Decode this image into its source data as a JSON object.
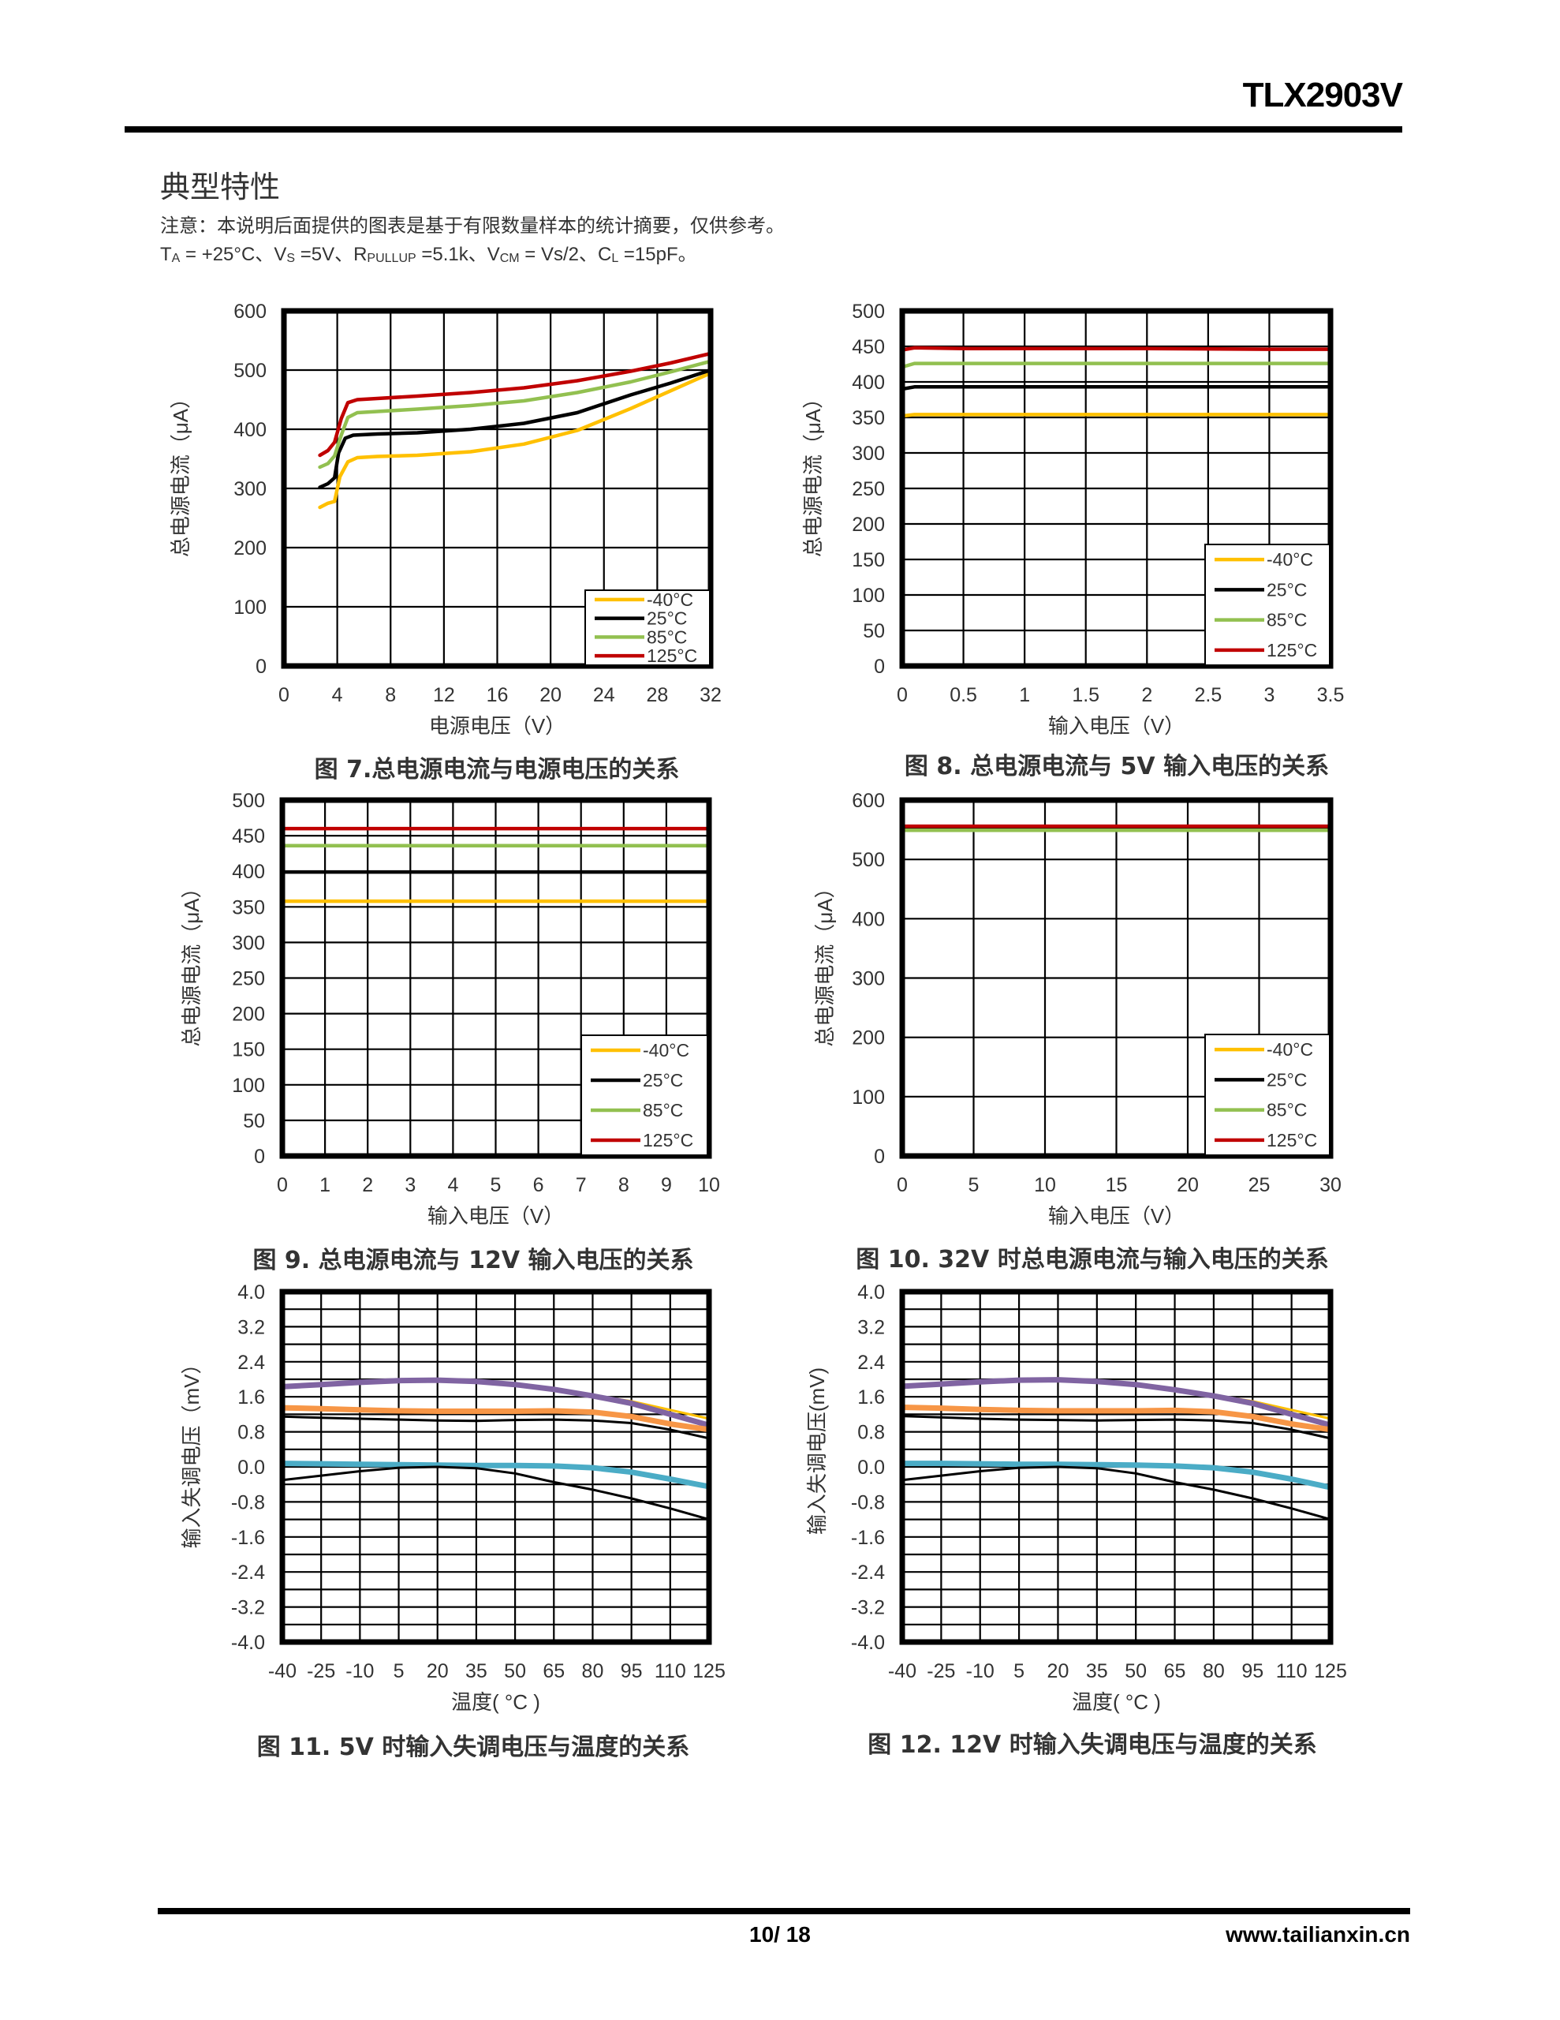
{
  "header": {
    "doc_title": "TLX2903V"
  },
  "section": {
    "heading": "典型特性",
    "note": "注意：本说明后面提供的图表是基于有限数量样本的统计摘要，仅供参考。",
    "conditions": {
      "ta": "T",
      "ta_sub": "A",
      "ta_val": " = +25°C、",
      "vs": "V",
      "vs_sub": "S",
      "vs_val": " =5V、",
      "rp": "R",
      "rp_sub": "PULLUP",
      "rp_val": " =5.1k、",
      "vcm": "V",
      "vcm_sub": "CM",
      "vcm_val": " = Vs/2、",
      "cl": "C",
      "cl_sub": "L",
      "cl_val": " =15pF。"
    }
  },
  "footer": {
    "page_number": "10/ 18",
    "website": "www.tailianxin.cn"
  },
  "colors": {
    "t_m40": "#FFC000",
    "t_25": "#000000",
    "t_85": "#92C050",
    "t_125": "#C00000",
    "purple": "#8064A2",
    "orange": "#F79646",
    "cyan": "#4BACC6",
    "yellow": "#FFC000",
    "black": "#000000"
  },
  "chart_data": [
    {
      "id": "fig7",
      "type": "line",
      "caption": "图 7.总电源电流与电源电压的关系",
      "xlabel": "电源电压（V）",
      "ylabel": "总电源电流（μA）",
      "xlim": [
        0,
        32
      ],
      "ylim": [
        0,
        600
      ],
      "xticks": [
        0,
        4,
        8,
        12,
        16,
        20,
        24,
        28,
        32
      ],
      "yticks": [
        0,
        100,
        200,
        300,
        400,
        500,
        600
      ],
      "xgrid_step": 4,
      "ygrid_step": 100,
      "grid": true,
      "legend": "bottom-right",
      "series": [
        {
          "name": "-40°C",
          "color_key": "t_m40",
          "x": [
            2.7,
            3.3,
            3.8,
            4.2,
            4.8,
            5.5,
            7,
            10,
            14,
            18,
            22,
            26,
            29,
            32
          ],
          "y": [
            268,
            275,
            278,
            320,
            345,
            352,
            354,
            356,
            362,
            375,
            398,
            435,
            465,
            495
          ]
        },
        {
          "name": "25°C",
          "color_key": "t_25",
          "x": [
            2.7,
            3.3,
            3.8,
            4.1,
            4.6,
            5.2,
            7,
            10,
            14,
            18,
            22,
            26,
            29,
            32
          ],
          "y": [
            302,
            308,
            318,
            360,
            385,
            390,
            392,
            394,
            400,
            410,
            428,
            458,
            478,
            500
          ]
        },
        {
          "name": "85°C",
          "color_key": "t_85",
          "x": [
            2.7,
            3.3,
            3.8,
            4.3,
            4.8,
            5.5,
            7,
            10,
            14,
            18,
            22,
            26,
            29,
            32
          ],
          "y": [
            336,
            342,
            355,
            390,
            420,
            428,
            430,
            434,
            440,
            448,
            462,
            480,
            497,
            515
          ]
        },
        {
          "name": "125°C",
          "color_key": "t_125",
          "x": [
            2.7,
            3.3,
            3.8,
            4.3,
            4.8,
            5.5,
            7,
            10,
            14,
            18,
            22,
            26,
            29,
            32
          ],
          "y": [
            356,
            364,
            378,
            418,
            445,
            450,
            452,
            456,
            462,
            470,
            482,
            498,
            512,
            528
          ]
        }
      ]
    },
    {
      "id": "fig8",
      "type": "line",
      "caption": "图 8. 总电源电流与 5V 输入电压的关系",
      "xlabel": "输入电压（V）",
      "ylabel": "总电源电流（μA）",
      "xlim": [
        0,
        3.5
      ],
      "ylim": [
        0,
        500
      ],
      "xticks": [
        0,
        0.5,
        1,
        1.5,
        2,
        2.5,
        3,
        3.5
      ],
      "yticks": [
        0,
        50,
        100,
        150,
        200,
        250,
        300,
        350,
        400,
        450,
        500
      ],
      "xgrid_step": 0.5,
      "ygrid_step": 50,
      "grid": true,
      "legend": "bottom-right",
      "series": [
        {
          "name": "-40°C",
          "color_key": "t_m40",
          "x": [
            0,
            0.1,
            0.5,
            1,
            2,
            3,
            3.5
          ],
          "y": [
            352,
            354,
            354,
            354,
            354,
            354,
            354
          ]
        },
        {
          "name": "25°C",
          "color_key": "t_25",
          "x": [
            0,
            0.1,
            0.5,
            1,
            2,
            3,
            3.5
          ],
          "y": [
            390,
            393,
            393,
            393,
            393,
            393,
            393
          ]
        },
        {
          "name": "85°C",
          "color_key": "t_85",
          "x": [
            0,
            0.1,
            0.5,
            1,
            2,
            3,
            3.5
          ],
          "y": [
            421,
            426,
            426,
            426,
            426,
            426,
            426
          ]
        },
        {
          "name": "125°C",
          "color_key": "t_125",
          "x": [
            0,
            0.1,
            0.5,
            1,
            2,
            3,
            3.5
          ],
          "y": [
            445,
            448,
            447,
            447,
            447,
            446,
            446
          ]
        }
      ]
    },
    {
      "id": "fig9",
      "type": "line",
      "caption": "图 9. 总电源电流与 12V 输入电压的关系",
      "xlabel": "输入电压（V）",
      "ylabel": "总电源电流（μA）",
      "xlim": [
        0,
        10
      ],
      "ylim": [
        0,
        500
      ],
      "xticks": [
        0,
        1,
        2,
        3,
        4,
        5,
        6,
        7,
        8,
        9,
        10
      ],
      "yticks": [
        0,
        50,
        100,
        150,
        200,
        250,
        300,
        350,
        400,
        450,
        500
      ],
      "xgrid_step": 1,
      "ygrid_step": 50,
      "grid": true,
      "legend": "bottom-right",
      "series": [
        {
          "name": "-40°C",
          "color_key": "t_m40",
          "x": [
            0,
            10
          ],
          "y": [
            358,
            358
          ]
        },
        {
          "name": "25°C",
          "color_key": "t_25",
          "x": [
            0,
            10
          ],
          "y": [
            399,
            399
          ]
        },
        {
          "name": "85°C",
          "color_key": "t_85",
          "x": [
            0,
            10
          ],
          "y": [
            436,
            436
          ]
        },
        {
          "name": "125°C",
          "color_key": "t_125",
          "x": [
            0,
            10
          ],
          "y": [
            460,
            460
          ]
        }
      ]
    },
    {
      "id": "fig10",
      "type": "line",
      "caption": "图 10. 32V 时总电源电流与输入电压的关系",
      "xlabel": "输入电压（V）",
      "ylabel": "总电源电流（μA）",
      "xlim": [
        0,
        30
      ],
      "ylim": [
        0,
        600
      ],
      "xticks": [
        0,
        5,
        10,
        15,
        20,
        25,
        30
      ],
      "yticks": [
        0,
        100,
        200,
        300,
        400,
        500,
        600
      ],
      "xgrid_step": 5,
      "ygrid_step": 100,
      "grid": true,
      "legend": "bottom-right",
      "series": [
        {
          "name": "-40°C",
          "color_key": "t_m40",
          "x": [
            0,
            30
          ],
          "y": [
            552,
            552
          ]
        },
        {
          "name": "25°C",
          "color_key": "t_25",
          "x": [
            0,
            30
          ],
          "y": [
            553,
            553
          ]
        },
        {
          "name": "85°C",
          "color_key": "t_85",
          "x": [
            0,
            30
          ],
          "y": [
            549,
            549
          ]
        },
        {
          "name": "125°C",
          "color_key": "t_125",
          "x": [
            0,
            30
          ],
          "y": [
            556,
            556
          ]
        }
      ]
    },
    {
      "id": "fig11",
      "type": "line",
      "caption": "图 11. 5V 时输入失调电压与温度的关系",
      "xlabel": "温度( °C )",
      "ylabel": "输入失调电压（mV）",
      "xlim": [
        -40,
        125
      ],
      "ylim": [
        -4,
        4
      ],
      "xticks": [
        -40,
        -25,
        -10,
        5,
        20,
        35,
        50,
        65,
        80,
        95,
        110,
        125
      ],
      "yticks": [
        "-4.0",
        "-3.2",
        "-2.4",
        "-1.6",
        "-0.8",
        "0.0",
        "0.8",
        "1.6",
        "2.4",
        "3.2",
        "4.0"
      ],
      "xgrid_step": 15,
      "ygrid_step": 0.4,
      "grid": true,
      "legend": "none",
      "x": [
        -40,
        -25,
        -10,
        5,
        20,
        35,
        50,
        65,
        80,
        95,
        110,
        125
      ],
      "series": [
        {
          "name": "yellow",
          "color_key": "yellow",
          "width": "thin",
          "y": [
            1.83,
            1.88,
            1.93,
            1.97,
            1.98,
            1.95,
            1.88,
            1.77,
            1.63,
            1.5,
            1.3,
            1.1
          ]
        },
        {
          "name": "purple",
          "color_key": "purple",
          "width": "thick",
          "y": [
            1.83,
            1.88,
            1.93,
            1.97,
            1.98,
            1.95,
            1.88,
            1.77,
            1.62,
            1.45,
            1.2,
            0.95
          ]
        },
        {
          "name": "orange",
          "color_key": "orange",
          "width": "thick",
          "y": [
            1.35,
            1.33,
            1.3,
            1.28,
            1.27,
            1.27,
            1.27,
            1.28,
            1.25,
            1.15,
            0.98,
            0.85
          ]
        },
        {
          "name": "black-upper",
          "color_key": "black",
          "width": "thin",
          "y": [
            1.15,
            1.12,
            1.1,
            1.08,
            1.06,
            1.05,
            1.07,
            1.08,
            1.06,
            1.0,
            0.85,
            0.65
          ]
        },
        {
          "name": "cyan",
          "color_key": "cyan",
          "width": "thick",
          "y": [
            0.08,
            0.07,
            0.06,
            0.05,
            0.04,
            0.03,
            0.03,
            0.02,
            -0.02,
            -0.12,
            -0.28,
            -0.45
          ]
        },
        {
          "name": "black-lower",
          "color_key": "black",
          "width": "thin",
          "y": [
            -0.3,
            -0.2,
            -0.1,
            -0.02,
            0.0,
            -0.03,
            -0.15,
            -0.35,
            -0.52,
            -0.72,
            -0.95,
            -1.2
          ]
        }
      ]
    },
    {
      "id": "fig12",
      "type": "line",
      "caption": "图 12. 12V 时输入失调电压与温度的关系",
      "xlabel": "温度( °C )",
      "ylabel": "输入失调电压(mV)",
      "xlim": [
        -40,
        125
      ],
      "ylim": [
        -4,
        4
      ],
      "xticks": [
        -40,
        -25,
        -10,
        5,
        20,
        35,
        50,
        65,
        80,
        95,
        110,
        125
      ],
      "yticks": [
        "-4.0",
        "-3.2",
        "-2.4",
        "-1.6",
        "-0.8",
        "0.0",
        "0.8",
        "1.6",
        "2.4",
        "3.2",
        "4.0"
      ],
      "xgrid_step": 15,
      "ygrid_step": 0.4,
      "grid": true,
      "legend": "none",
      "x": [
        -40,
        -25,
        -10,
        5,
        20,
        35,
        50,
        65,
        80,
        95,
        110,
        125
      ],
      "series": [
        {
          "name": "yellow",
          "color_key": "yellow",
          "width": "thin",
          "y": [
            1.84,
            1.89,
            1.95,
            2.0,
            2.02,
            1.97,
            1.89,
            1.78,
            1.64,
            1.5,
            1.3,
            1.1
          ]
        },
        {
          "name": "purple",
          "color_key": "purple",
          "width": "thick",
          "y": [
            1.84,
            1.89,
            1.94,
            1.98,
            1.99,
            1.95,
            1.88,
            1.76,
            1.62,
            1.45,
            1.2,
            0.95
          ]
        },
        {
          "name": "orange",
          "color_key": "orange",
          "width": "thick",
          "y": [
            1.36,
            1.34,
            1.31,
            1.29,
            1.28,
            1.28,
            1.28,
            1.29,
            1.26,
            1.15,
            0.98,
            0.85
          ]
        },
        {
          "name": "black-upper",
          "color_key": "black",
          "width": "thin",
          "y": [
            1.16,
            1.13,
            1.1,
            1.08,
            1.07,
            1.06,
            1.07,
            1.08,
            1.06,
            1.0,
            0.85,
            0.65
          ]
        },
        {
          "name": "cyan",
          "color_key": "cyan",
          "width": "thick",
          "y": [
            0.08,
            0.08,
            0.07,
            0.06,
            0.06,
            0.05,
            0.04,
            0.02,
            -0.02,
            -0.12,
            -0.28,
            -0.47
          ]
        },
        {
          "name": "black-lower",
          "color_key": "black",
          "width": "thin",
          "y": [
            -0.3,
            -0.2,
            -0.1,
            -0.02,
            0.0,
            -0.03,
            -0.15,
            -0.35,
            -0.52,
            -0.72,
            -0.95,
            -1.2
          ]
        }
      ]
    }
  ]
}
